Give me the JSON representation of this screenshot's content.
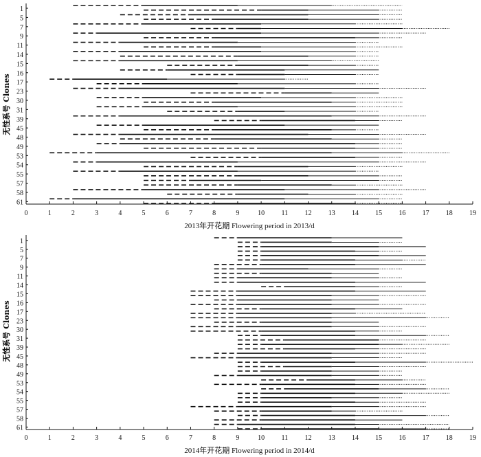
{
  "chart_data": [
    {
      "type": "gantt",
      "xlabel": "2013年开花期  Flowering period in 2013/d",
      "ylabel": "无性系号 Clones",
      "xlim": [
        0,
        19
      ],
      "xticks": [
        0,
        1,
        2,
        3,
        4,
        5,
        6,
        7,
        8,
        9,
        10,
        11,
        12,
        13,
        14,
        15,
        16,
        17,
        18,
        19
      ],
      "legend": "none",
      "grid": false,
      "phase_styles": {
        "dashed": "initial flowering",
        "solid": "full flowering",
        "dotted": "end flowering"
      },
      "rows": [
        {
          "group": "1",
          "bars": [
            [
              2,
              5,
              9,
              13,
              16
            ],
            [
              5,
              10,
              12,
              15,
              16
            ]
          ]
        },
        {
          "group": "5",
          "bars": [
            [
              4,
              7,
              12,
              15,
              16
            ],
            [
              5,
              8,
              12,
              15,
              16
            ]
          ]
        },
        {
          "group": "7",
          "bars": [
            [
              2,
              5,
              10,
              14,
              16
            ],
            [
              7,
              9,
              10,
              16,
              18
            ]
          ]
        },
        {
          "group": "9",
          "bars": [
            [
              2,
              3,
              10,
              15,
              17
            ],
            [
              5,
              8,
              14,
              15,
              16
            ]
          ]
        },
        {
          "group": "11",
          "bars": [
            [
              2,
              4,
              9,
              14,
              15
            ],
            [
              5,
              8,
              10,
              14,
              16
            ]
          ]
        },
        {
          "group": "14",
          "bars": [
            [
              2,
              4,
              10,
              14,
              15
            ],
            [
              4,
              9,
              12,
              14,
              15
            ]
          ]
        },
        {
          "group": "15",
          "bars": [
            [
              2,
              4,
              9,
              13,
              15
            ],
            [
              6,
              9,
              12,
              14,
              15
            ]
          ]
        },
        {
          "group": "16",
          "bars": [
            [
              4,
              6,
              11,
              15,
              15
            ],
            [
              7,
              9,
              11,
              14,
              15
            ]
          ]
        },
        {
          "group": "17",
          "bars": [
            [
              1,
              2,
              6,
              11,
              12
            ],
            [
              3,
              5,
              9,
              14,
              15
            ]
          ]
        },
        {
          "group": "23",
          "bars": [
            [
              2,
              4,
              11,
              15,
              17
            ],
            [
              7,
              11,
              13,
              15,
              15
            ]
          ]
        },
        {
          "group": "30",
          "bars": [
            [
              3,
              5,
              10,
              14,
              16
            ],
            [
              5,
              8,
              13,
              14,
              16
            ]
          ]
        },
        {
          "group": "31",
          "bars": [
            [
              3,
              5,
              9,
              14,
              16
            ],
            [
              6,
              9,
              11,
              14,
              15
            ]
          ]
        },
        {
          "group": "39",
          "bars": [
            [
              2,
              4,
              13,
              15,
              17
            ],
            [
              8,
              10,
              14,
              15,
              16
            ]
          ]
        },
        {
          "group": "45",
          "bars": [
            [
              3,
              5,
              11,
              15,
              15
            ],
            [
              5,
              8,
              13,
              14,
              15
            ]
          ]
        },
        {
          "group": "48",
          "bars": [
            [
              2,
              4,
              12,
              15,
              17
            ],
            [
              4,
              8,
              13,
              15,
              16
            ]
          ]
        },
        {
          "group": "49",
          "bars": [
            [
              3,
              4,
              14,
              15,
              16
            ],
            [
              5,
              10,
              14,
              15,
              16
            ]
          ]
        },
        {
          "group": "53",
          "bars": [
            [
              1,
              3,
              13,
              16,
              18
            ],
            [
              7,
              10,
              14,
              15,
              16
            ]
          ]
        },
        {
          "group": "54",
          "bars": [
            [
              2,
              3,
              9,
              15,
              17
            ],
            [
              5,
              9,
              12,
              14,
              16
            ]
          ]
        },
        {
          "group": "55",
          "bars": [
            [
              2,
              4,
              9,
              14,
              15
            ],
            [
              5,
              9,
              12,
              15,
              16
            ]
          ]
        },
        {
          "group": "57",
          "bars": [
            [
              5,
              7,
              10,
              15,
              16
            ],
            [
              5,
              9,
              13,
              14,
              16
            ]
          ]
        },
        {
          "group": "58",
          "bars": [
            [
              2,
              5,
              11,
              15,
              17
            ],
            [
              6,
              9,
              12,
              14,
              16
            ]
          ]
        },
        {
          "group": "61",
          "bars": [
            [
              1,
              2,
              11,
              15,
              16
            ],
            [
              5,
              8,
              13,
              14,
              16
            ]
          ]
        }
      ]
    },
    {
      "type": "gantt",
      "xlabel": "2014年开花期  Flowering period in 2014/d",
      "ylabel": "无性系号 Clones",
      "xlim": [
        0,
        19
      ],
      "xticks": [
        0,
        1,
        2,
        3,
        4,
        5,
        6,
        7,
        8,
        9,
        10,
        11,
        12,
        13,
        14,
        15,
        16,
        17,
        18,
        19
      ],
      "legend": "none",
      "grid": false,
      "phase_styles": {
        "dashed": "initial flowering",
        "solid": "full flowering",
        "dotted": "end flowering"
      },
      "rows": [
        {
          "group": "1",
          "bars": [
            [
              8,
              9,
              13,
              16,
              16
            ],
            [
              9,
              10,
              13,
              15,
              16
            ]
          ]
        },
        {
          "group": "5",
          "bars": [
            [
              9,
              10,
              15,
              17,
              17
            ],
            [
              9,
              10,
              14,
              15,
              16
            ]
          ]
        },
        {
          "group": "7",
          "bars": [
            [
              9,
              10,
              15,
              17,
              17
            ],
            [
              9,
              10,
              14,
              16,
              17
            ]
          ]
        },
        {
          "group": "9",
          "bars": [
            [
              8,
              10,
              14,
              17,
              17
            ],
            [
              8,
              9,
              12,
              15,
              16
            ]
          ]
        },
        {
          "group": "11",
          "bars": [
            [
              8,
              10,
              13,
              15,
              15
            ],
            [
              8,
              9,
              13,
              15,
              16
            ]
          ]
        },
        {
          "group": "14",
          "bars": [
            [
              8,
              9,
              14,
              17,
              17
            ],
            [
              10,
              11,
              14,
              15,
              16
            ]
          ]
        },
        {
          "group": "15",
          "bars": [
            [
              7,
              9,
              14,
              17,
              17
            ],
            [
              7,
              9,
              13,
              15,
              17
            ]
          ]
        },
        {
          "group": "16",
          "bars": [
            [
              8,
              9,
              13,
              15,
              15
            ],
            [
              7,
              9,
              13,
              15,
              17
            ]
          ]
        },
        {
          "group": "17",
          "bars": [
            [
              8,
              10,
              14,
              16,
              16
            ],
            [
              7,
              9,
              13,
              14,
              17
            ]
          ]
        },
        {
          "group": "23",
          "bars": [
            [
              7,
              9,
              13,
              17,
              18
            ],
            [
              8,
              10,
              13,
              15,
              15
            ]
          ]
        },
        {
          "group": "30",
          "bars": [
            [
              7,
              9,
              13,
              15,
              17
            ],
            [
              7,
              10,
              14,
              15,
              16
            ]
          ]
        },
        {
          "group": "31",
          "bars": [
            [
              9,
              10,
              14,
              17,
              18
            ],
            [
              9,
              11,
              15,
              15,
              17
            ]
          ]
        },
        {
          "group": "39",
          "bars": [
            [
              9,
              10,
              15,
              16,
              18
            ],
            [
              9,
              11,
              14,
              15,
              17
            ]
          ]
        },
        {
          "group": "45",
          "bars": [
            [
              8,
              9,
              13,
              15,
              17
            ],
            [
              7,
              9,
              13,
              15,
              16
            ]
          ]
        },
        {
          "group": "48",
          "bars": [
            [
              9,
              10,
              14,
              17,
              19
            ],
            [
              9,
              11,
              13,
              15,
              17
            ]
          ]
        },
        {
          "group": "49",
          "bars": [
            [
              9,
              10,
              13,
              15,
              16
            ],
            [
              8,
              9,
              13,
              15,
              16
            ]
          ]
        },
        {
          "group": "53",
          "bars": [
            [
              10,
              12,
              14,
              16,
              17
            ],
            [
              8,
              10,
              14,
              15,
              17
            ]
          ]
        },
        {
          "group": "54",
          "bars": [
            [
              10,
              11,
              15,
              17,
              18
            ],
            [
              9,
              10,
              14,
              16,
              18
            ]
          ]
        },
        {
          "group": "55",
          "bars": [
            [
              9,
              10,
              13,
              15,
              16
            ],
            [
              9,
              10,
              14,
              15,
              17
            ]
          ]
        },
        {
          "group": "57",
          "bars": [
            [
              7,
              9,
              13,
              15,
              17
            ],
            [
              8,
              10,
              13,
              14,
              16
            ]
          ]
        },
        {
          "group": "58",
          "bars": [
            [
              9,
              10,
              14,
              17,
              18
            ],
            [
              8,
              10,
              14,
              16,
              16
            ]
          ]
        },
        {
          "group": "61",
          "bars": [
            [
              8,
              9,
              14,
              15,
              18
            ],
            [
              9,
              10,
              15,
              17,
              18
            ]
          ]
        }
      ]
    }
  ]
}
